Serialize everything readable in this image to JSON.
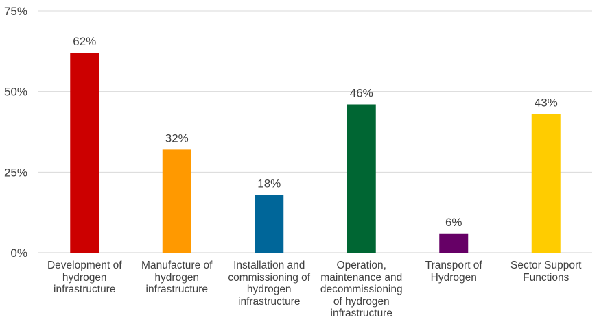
{
  "chart_data": {
    "type": "bar",
    "categories": [
      [
        "Development of",
        "hydrogen",
        "infrastructure"
      ],
      [
        "Manufacture of",
        "hydrogen",
        "infrastructure"
      ],
      [
        "Installation and",
        "commissioning of",
        "hydrogen",
        "infrastructure"
      ],
      [
        "Operation,",
        "maintenance and",
        "decommissioning",
        "of hydrogen",
        "infrastructure"
      ],
      [
        "Transport of",
        "Hydrogen"
      ],
      [
        "Sector Support",
        "Functions"
      ]
    ],
    "values": [
      62,
      32,
      18,
      46,
      6,
      43
    ],
    "data_labels": [
      "62%",
      "32%",
      "18%",
      "46%",
      "6%",
      "43%"
    ],
    "colors": [
      "#cc0000",
      "#ff9900",
      "#006699",
      "#006633",
      "#660066",
      "#ffcc00"
    ],
    "ylim": [
      0,
      75
    ],
    "yticks": [
      0,
      25,
      50,
      75
    ],
    "ytick_labels": [
      "0%",
      "25%",
      "50%",
      "75%"
    ],
    "grid": true,
    "title": "",
    "xlabel": "",
    "ylabel": ""
  }
}
